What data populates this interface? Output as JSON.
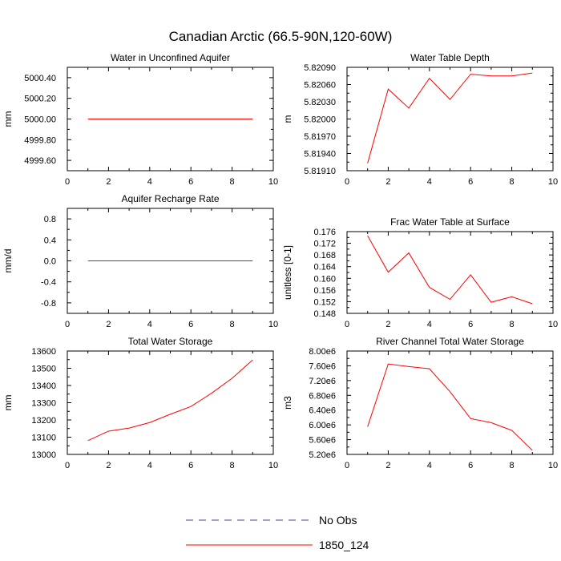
{
  "title": "Canadian Arctic (66.5-90N,120-60W)",
  "legend": [
    {
      "label": "No Obs",
      "color": "#4040a0",
      "dash": true
    },
    {
      "label": "1850_124",
      "color": "#ff0000",
      "dash": false
    }
  ],
  "chart_data": [
    {
      "type": "line",
      "title": "Water in Unconfined Aquifer",
      "xlabel": "",
      "ylabel": "mm",
      "xlim": [
        0,
        10
      ],
      "ylim": [
        4999.5,
        5000.5
      ],
      "xticks": [
        0,
        2,
        4,
        6,
        8,
        10
      ],
      "xtick_labels": [
        "0",
        "2",
        "4",
        "6",
        "8",
        "10"
      ],
      "yticks": [
        4999.6,
        4999.8,
        5000.0,
        5000.2,
        5000.4
      ],
      "ytick_labels": [
        "4999.60",
        "4999.80",
        "5000.00",
        "5000.20",
        "5000.40"
      ],
      "series": [
        {
          "name": "1850_124",
          "color": "#ff0000",
          "x": [
            1,
            2,
            3,
            4,
            5,
            6,
            7,
            8,
            9
          ],
          "y": [
            5000.0,
            5000.0,
            5000.0,
            5000.0,
            5000.0,
            5000.0,
            5000.0,
            5000.0,
            5000.0
          ]
        }
      ]
    },
    {
      "type": "line",
      "title": "Water Table Depth",
      "xlabel": "",
      "ylabel": "m",
      "xlim": [
        0,
        10
      ],
      "ylim": [
        5.8191,
        5.8209
      ],
      "xticks": [
        0,
        2,
        4,
        6,
        8,
        10
      ],
      "xtick_labels": [
        "0",
        "2",
        "4",
        "6",
        "8",
        "10"
      ],
      "yticks": [
        5.8191,
        5.8194,
        5.8197,
        5.82,
        5.8203,
        5.8206,
        5.8209
      ],
      "ytick_labels": [
        "5.81910",
        "5.81940",
        "5.81970",
        "5.82000",
        "5.82030",
        "5.82060",
        "5.82090"
      ],
      "series": [
        {
          "name": "1850_124",
          "color": "#ff0000",
          "x": [
            1,
            2,
            3,
            4,
            5,
            6,
            7,
            8,
            9
          ],
          "y": [
            5.81923,
            5.82052,
            5.82019,
            5.82071,
            5.82034,
            5.82078,
            5.82075,
            5.82075,
            5.8208
          ]
        }
      ]
    },
    {
      "type": "line",
      "title": "Aquifer Recharge Rate",
      "xlabel": "",
      "ylabel": "mm/d",
      "xlim": [
        0,
        10
      ],
      "ylim": [
        -1.0,
        1.0
      ],
      "xticks": [
        0,
        2,
        4,
        6,
        8,
        10
      ],
      "xtick_labels": [
        "0",
        "2",
        "4",
        "6",
        "8",
        "10"
      ],
      "yticks": [
        -0.8,
        -0.4,
        0.0,
        0.4,
        0.8
      ],
      "ytick_labels": [
        "-0.8",
        "-0.4",
        "0.0",
        "0.4",
        "0.8"
      ],
      "series": [
        {
          "name": "1850_124",
          "color": "#ff0000",
          "x": [
            1,
            2,
            3,
            4,
            5,
            6,
            7,
            8,
            9
          ],
          "y": [
            0,
            0,
            0,
            0,
            0,
            0,
            0,
            0,
            0
          ]
        }
      ]
    },
    {
      "type": "line",
      "title": "Frac Water Table at Surface",
      "xlabel": "",
      "ylabel": "unitless [0-1]",
      "xlim": [
        0,
        10
      ],
      "ylim": [
        0.148,
        0.176
      ],
      "xticks": [
        0,
        2,
        4,
        6,
        8,
        10
      ],
      "xtick_labels": [
        "0",
        "2",
        "4",
        "6",
        "8",
        "10"
      ],
      "yticks": [
        0.148,
        0.152,
        0.156,
        0.16,
        0.164,
        0.168,
        0.172,
        0.176
      ],
      "ytick_labels": [
        "0.148",
        "0.152",
        "0.156",
        "0.160",
        "0.164",
        "0.168",
        "0.172",
        "0.176"
      ],
      "series": [
        {
          "name": "1850_124",
          "color": "#ff0000",
          "x": [
            1,
            2,
            3,
            4,
            5,
            6,
            7,
            8,
            9
          ],
          "y": [
            0.1746,
            0.1621,
            0.1687,
            0.1569,
            0.1528,
            0.1612,
            0.1518,
            0.1537,
            0.1513
          ]
        }
      ]
    },
    {
      "type": "line",
      "title": "Total Water Storage",
      "xlabel": "",
      "ylabel": "mm",
      "xlim": [
        0,
        10
      ],
      "ylim": [
        13000,
        13600
      ],
      "xticks": [
        0,
        2,
        4,
        6,
        8,
        10
      ],
      "xtick_labels": [
        "0",
        "2",
        "4",
        "6",
        "8",
        "10"
      ],
      "yticks": [
        13000,
        13100,
        13200,
        13300,
        13400,
        13500,
        13600
      ],
      "ytick_labels": [
        "13000",
        "13100",
        "13200",
        "13300",
        "13400",
        "13500",
        "13600"
      ],
      "series": [
        {
          "name": "1850_124",
          "color": "#ff0000",
          "x": [
            1,
            2,
            3,
            4,
            5,
            6,
            7,
            8,
            9
          ],
          "y": [
            13080,
            13135,
            13153,
            13185,
            13233,
            13278,
            13355,
            13442,
            13548
          ]
        }
      ]
    },
    {
      "type": "line",
      "title": "River Channel Total Water Storage",
      "xlabel": "",
      "ylabel": "m3",
      "xlim": [
        0,
        10
      ],
      "ylim": [
        5200000,
        8000000
      ],
      "xticks": [
        0,
        2,
        4,
        6,
        8,
        10
      ],
      "xtick_labels": [
        "0",
        "2",
        "4",
        "6",
        "8",
        "10"
      ],
      "yticks": [
        5200000,
        5600000,
        6000000,
        6400000,
        6800000,
        7200000,
        7600000,
        8000000
      ],
      "ytick_labels": [
        "5.20e6",
        "5.60e6",
        "6.00e6",
        "6.40e6",
        "6.80e6",
        "7.20e6",
        "7.60e6",
        "8.00e6"
      ],
      "series": [
        {
          "name": "1850_124",
          "color": "#ff0000",
          "x": [
            1,
            2,
            3,
            4,
            5,
            6,
            7,
            8,
            9
          ],
          "y": [
            5950000,
            7650000,
            7580000,
            7520000,
            6900000,
            6170000,
            6060000,
            5850000,
            5310000
          ]
        }
      ]
    }
  ]
}
